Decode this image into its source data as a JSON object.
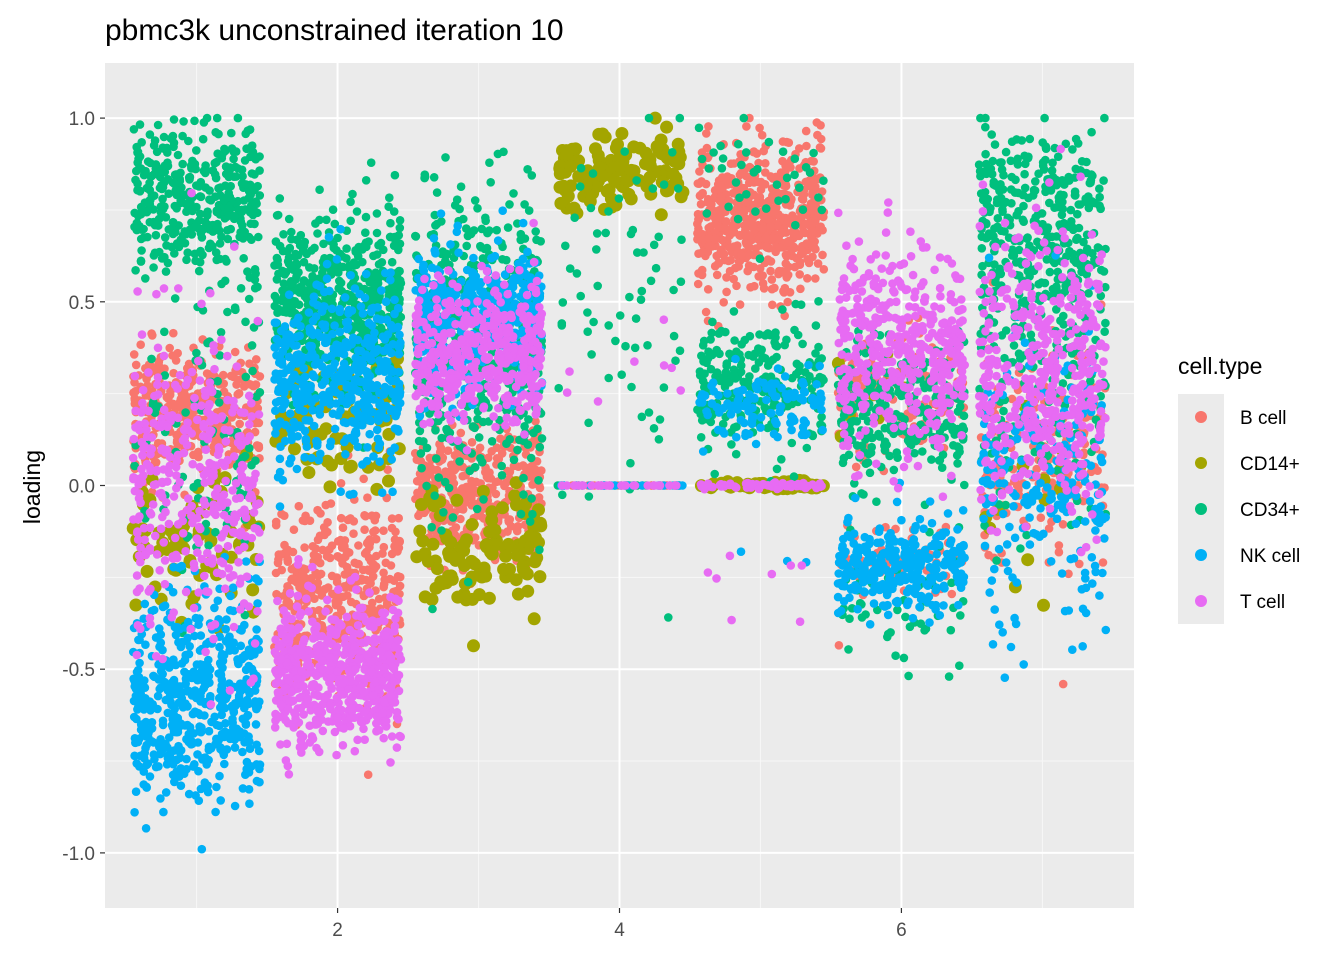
{
  "chart_data": {
    "type": "scatter",
    "title": "pbmc3k unconstrained iteration 10",
    "xlabel": "",
    "ylabel": "loading",
    "xlim": [
      0.35,
      7.65
    ],
    "ylim": [
      -1.15,
      1.15
    ],
    "x_ticks": [
      2,
      4,
      6
    ],
    "x_tick_labels": [
      "2",
      "4",
      "6"
    ],
    "y_ticks": [
      -1.0,
      -0.5,
      0.0,
      0.5,
      1.0
    ],
    "y_tick_labels": [
      "-1.0",
      "-0.5",
      "0.0",
      "0.5",
      "1.0"
    ],
    "grid": true,
    "jitter_width": 0.45,
    "legend": {
      "title": "cell.type",
      "position": "right",
      "entries": [
        {
          "name": "B cell",
          "color": "#F8766D"
        },
        {
          "name": "CD14+",
          "color": "#A3A500"
        },
        {
          "name": "CD34+",
          "color": "#00BF7D"
        },
        {
          "name": "NK cell",
          "color": "#00B0F6"
        },
        {
          "name": "T cell",
          "color": "#E76BF3"
        }
      ]
    },
    "series": [
      {
        "name": "B cell",
        "color": "#F8766D",
        "clusters": [
          {
            "x": 1,
            "mean": 0.2,
            "sd": 0.09,
            "n": 380
          },
          {
            "x": 2,
            "mean": -0.3,
            "sd": 0.13,
            "n": 420
          },
          {
            "x": 3,
            "mean": -0.02,
            "sd": 0.08,
            "n": 380
          },
          {
            "x": 4,
            "mean": 0.0,
            "sd": 0.0,
            "n": 30
          },
          {
            "x": 5,
            "mean": 0.72,
            "sd": 0.1,
            "n": 600
          },
          {
            "x": 6,
            "mean": 0.25,
            "sd": 0.1,
            "n": 120
          },
          {
            "x": 6,
            "mean": -0.2,
            "sd": 0.06,
            "n": 60
          },
          {
            "x": 7,
            "mean": 0.08,
            "sd": 0.15,
            "n": 180
          }
        ]
      },
      {
        "name": "CD14+",
        "color": "#A3A500",
        "clusters": [
          {
            "x": 1,
            "mean": -0.15,
            "sd": 0.1,
            "n": 70
          },
          {
            "x": 2,
            "mean": 0.18,
            "sd": 0.1,
            "n": 80
          },
          {
            "x": 3,
            "mean": -0.18,
            "sd": 0.08,
            "n": 110
          },
          {
            "x": 4,
            "mean": 0.86,
            "sd": 0.06,
            "n": 120
          },
          {
            "x": 5,
            "mean": 0.0,
            "sd": 0.005,
            "n": 60
          },
          {
            "x": 6,
            "mean": 0.25,
            "sd": 0.1,
            "n": 10
          },
          {
            "x": 7,
            "mean": -0.05,
            "sd": 0.1,
            "n": 15
          }
        ]
      },
      {
        "name": "CD34+",
        "color": "#00BF7D",
        "clusters": [
          {
            "x": 1,
            "mean": 0.78,
            "sd": 0.1,
            "n": 360
          },
          {
            "x": 1,
            "mean": 0.15,
            "sd": 0.25,
            "n": 100
          },
          {
            "x": 2,
            "mean": 0.5,
            "sd": 0.12,
            "n": 500
          },
          {
            "x": 3,
            "mean": 0.4,
            "sd": 0.22,
            "n": 480
          },
          {
            "x": 4,
            "mean": 0.5,
            "sd": 0.25,
            "n": 70
          },
          {
            "x": 4,
            "mean": 0.0,
            "sd": 0.0,
            "n": 15
          },
          {
            "x": 5,
            "mean": 0.28,
            "sd": 0.09,
            "n": 220
          },
          {
            "x": 5,
            "mean": 0.85,
            "sd": 0.08,
            "n": 40
          },
          {
            "x": 6,
            "mean": 0.2,
            "sd": 0.09,
            "n": 260
          },
          {
            "x": 6,
            "mean": -0.3,
            "sd": 0.12,
            "n": 60
          },
          {
            "x": 7,
            "mean": 0.68,
            "sd": 0.15,
            "n": 360
          },
          {
            "x": 7,
            "mean": 0.2,
            "sd": 0.15,
            "n": 120
          }
        ]
      },
      {
        "name": "NK cell",
        "color": "#00B0F6",
        "clusters": [
          {
            "x": 1,
            "mean": -0.58,
            "sd": 0.14,
            "n": 520
          },
          {
            "x": 2,
            "mean": 0.3,
            "sd": 0.12,
            "n": 460
          },
          {
            "x": 3,
            "mean": 0.45,
            "sd": 0.1,
            "n": 420
          },
          {
            "x": 4,
            "mean": 0.0,
            "sd": 0.0,
            "n": 30
          },
          {
            "x": 5,
            "mean": 0.22,
            "sd": 0.05,
            "n": 120
          },
          {
            "x": 5,
            "mean": -0.2,
            "sd": 0.02,
            "n": 3
          },
          {
            "x": 6,
            "mean": -0.22,
            "sd": 0.06,
            "n": 280
          },
          {
            "x": 7,
            "mean": 0.0,
            "sd": 0.2,
            "n": 220
          }
        ]
      },
      {
        "name": "T cell",
        "color": "#E76BF3",
        "clusters": [
          {
            "x": 1,
            "mean": 0.02,
            "sd": 0.22,
            "n": 360
          },
          {
            "x": 2,
            "mean": -0.52,
            "sd": 0.1,
            "n": 560
          },
          {
            "x": 3,
            "mean": 0.35,
            "sd": 0.1,
            "n": 440
          },
          {
            "x": 4,
            "mean": 0.0,
            "sd": 0.0,
            "n": 30
          },
          {
            "x": 4,
            "mean": 0.3,
            "sd": 0.1,
            "n": 8
          },
          {
            "x": 5,
            "mean": 0.0,
            "sd": 0.004,
            "n": 60
          },
          {
            "x": 5,
            "mean": -0.25,
            "sd": 0.06,
            "n": 8
          },
          {
            "x": 6,
            "mean": 0.38,
            "sd": 0.14,
            "n": 440
          },
          {
            "x": 7,
            "mean": 0.3,
            "sd": 0.18,
            "n": 440
          }
        ]
      }
    ]
  }
}
